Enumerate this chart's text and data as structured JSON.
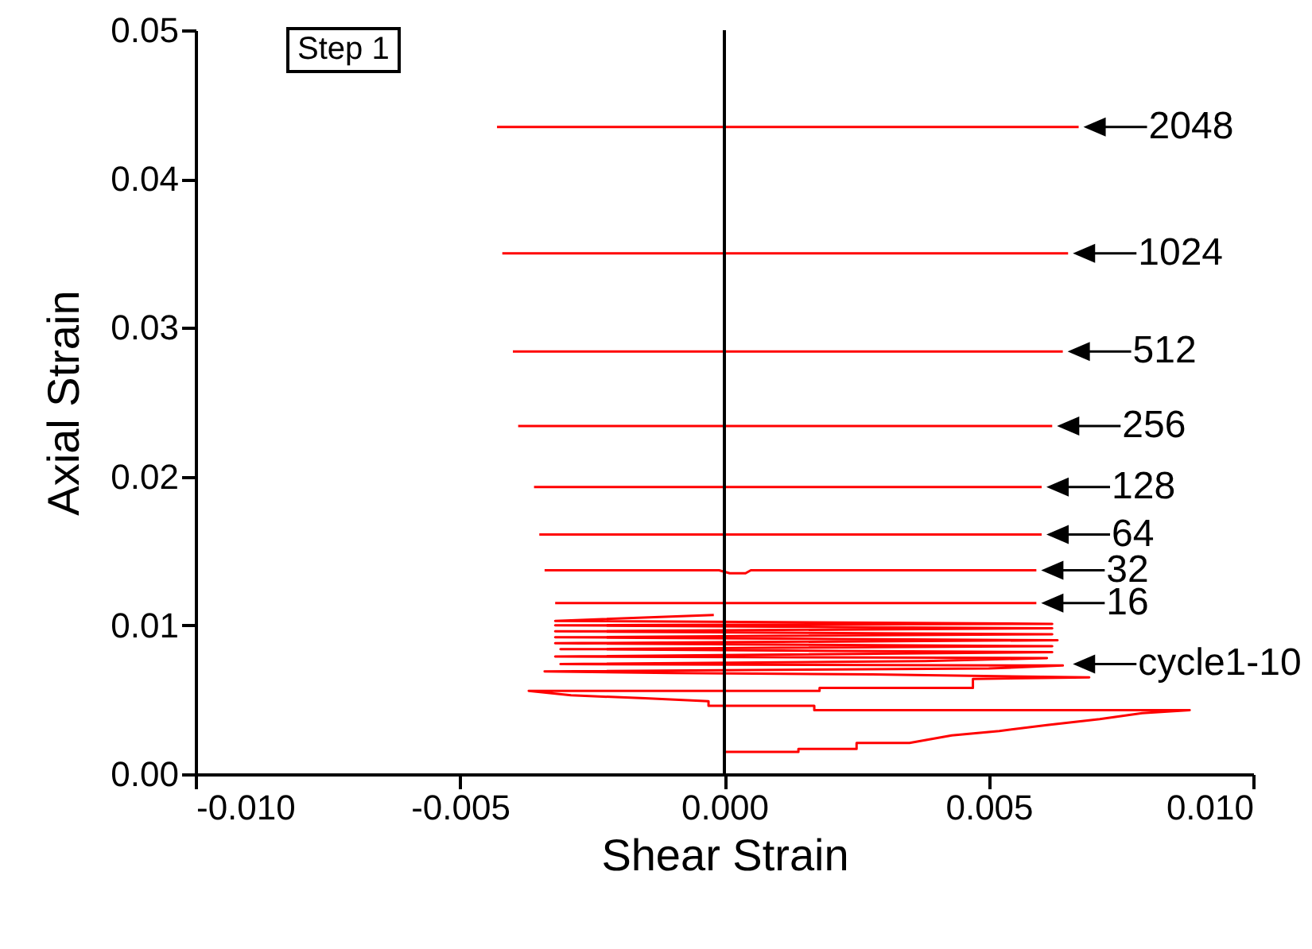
{
  "chart_data": {
    "type": "line",
    "xlabel": "Shear Strain",
    "ylabel": "Axial Strain",
    "xlim": [
      -0.01,
      0.01
    ],
    "ylim": [
      0,
      0.05
    ],
    "xticks": [
      {
        "value": -0.01,
        "label": "-0.010"
      },
      {
        "value": -0.005,
        "label": "-0.005"
      },
      {
        "value": 0,
        "label": "0.000"
      },
      {
        "value": 0.005,
        "label": "0.005"
      },
      {
        "value": 0.01,
        "label": "0.010"
      }
    ],
    "yticks": [
      {
        "value": 0,
        "label": "0.00"
      },
      0.01,
      0.02,
      0.03,
      0.04,
      0.05
    ],
    "ref_lines": [
      {
        "axis": "x",
        "value": 0,
        "color": "#000000"
      }
    ],
    "series": [
      {
        "color": "#ff0000",
        "x": [
          0.0,
          0.0014,
          0.0014,
          0.0025,
          0.0025,
          0.0035,
          0.0043,
          0.0052,
          0.0061,
          0.0071,
          0.0079,
          0.0088,
          0.0017,
          0.0017,
          -0.0003,
          -0.0003,
          -0.0015,
          -0.0029,
          -0.0037,
          0.0018,
          0.0018,
          0.0047,
          0.0047,
          0.0069,
          0.0028,
          -0.001,
          -0.0034,
          0.005,
          0.0064,
          -0.0031,
          0.0038,
          0.0061,
          -0.0032,
          0.0062,
          -0.0031,
          0.0062,
          -0.0032,
          0.0063,
          -0.0032,
          0.0062,
          -0.0032,
          0.0062,
          -0.0032,
          0.0062,
          -0.0032,
          -0.0002
        ],
        "values": [
          0.0015,
          0.0015,
          0.0017,
          0.0017,
          0.0021,
          0.0021,
          0.0026,
          0.0029,
          0.0033,
          0.0037,
          0.0041,
          0.0043,
          0.0043,
          0.0046,
          0.0046,
          0.0049,
          0.0051,
          0.0053,
          0.0056,
          0.0056,
          0.0058,
          0.0058,
          0.0064,
          0.0065,
          0.0067,
          0.0068,
          0.0069,
          0.0071,
          0.0073,
          0.0074,
          0.0076,
          0.0078,
          0.0079,
          0.0082,
          0.0084,
          0.0086,
          0.0088,
          0.009,
          0.0092,
          0.0094,
          0.0096,
          0.0098,
          0.01,
          0.0101,
          0.0103,
          0.0107
        ]
      },
      {
        "color": "#ff0000",
        "x": [
          -0.0032,
          0.0059
        ],
        "values": [
          0.0115,
          0.0115
        ]
      },
      {
        "color": "#ff0000",
        "x": [
          -0.0034,
          -0.0001,
          0.0001,
          0.0004,
          0.0005,
          0.0059
        ],
        "values": [
          0.0137,
          0.0137,
          0.0135,
          0.0135,
          0.0137,
          0.0137
        ]
      },
      {
        "color": "#ff0000",
        "x": [
          -0.0035,
          0.006
        ],
        "values": [
          0.0161,
          0.0161
        ]
      },
      {
        "color": "#ff0000",
        "x": [
          -0.0036,
          0.006
        ],
        "values": [
          0.0193,
          0.0193
        ]
      },
      {
        "color": "#ff0000",
        "x": [
          -0.0039,
          0.0062
        ],
        "values": [
          0.0234,
          0.0234
        ]
      },
      {
        "color": "#ff0000",
        "x": [
          -0.004,
          0.0064
        ],
        "values": [
          0.0284,
          0.0284
        ]
      },
      {
        "color": "#ff0000",
        "x": [
          -0.0042,
          0.0065
        ],
        "values": [
          0.035,
          0.035
        ]
      },
      {
        "color": "#ff0000",
        "x": [
          -0.0043,
          0.0067
        ],
        "values": [
          0.0435,
          0.0435
        ]
      }
    ],
    "annotations": [
      "Step 1",
      {
        "text": "2048",
        "x": 0.0067,
        "y": 0.0435
      },
      {
        "text": "1024",
        "x": 0.0065,
        "y": 0.035
      },
      {
        "text": "512",
        "x": 0.0064,
        "y": 0.0284
      },
      {
        "text": "256",
        "x": 0.0062,
        "y": 0.0234
      },
      {
        "text": "128",
        "x": 0.006,
        "y": 0.0193
      },
      {
        "text": "64",
        "x": 0.006,
        "y": 0.0161
      },
      {
        "text": "32",
        "x": 0.0059,
        "y": 0.0137
      },
      {
        "text": "16",
        "x": 0.0059,
        "y": 0.0115
      },
      {
        "text": "cycle1-10",
        "x": 0.0065,
        "y": 0.0074
      }
    ]
  }
}
